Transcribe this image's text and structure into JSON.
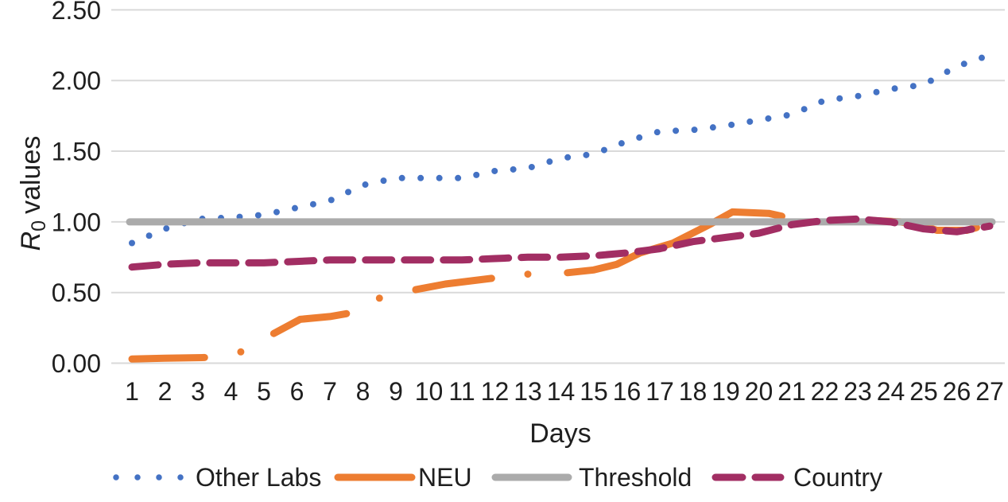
{
  "chart_data": {
    "type": "line",
    "title": "",
    "xlabel": "Days",
    "ylabel": "R0 values",
    "ylabel_parts": {
      "main": "R",
      "subscript": "0",
      "rest": "values"
    },
    "x": [
      1,
      2,
      3,
      4,
      5,
      6,
      7,
      8,
      9,
      10,
      11,
      12,
      13,
      14,
      15,
      16,
      17,
      18,
      19,
      20,
      21,
      22,
      23,
      24,
      25,
      26,
      27
    ],
    "x_ticks": [
      "1",
      "2",
      "3",
      "4",
      "5",
      "6",
      "7",
      "8",
      "9",
      "10",
      "11",
      "12",
      "13",
      "14",
      "15",
      "16",
      "17",
      "18",
      "19",
      "20",
      "21",
      "22",
      "23",
      "24",
      "25",
      "26",
      "27"
    ],
    "y_ticks": [
      "0.00",
      "0.50",
      "1.00",
      "1.50",
      "2.00",
      "2.50"
    ],
    "xlim": [
      1,
      27
    ],
    "ylim": [
      0,
      2.5
    ],
    "y_step": 0.5,
    "grid": true,
    "legend_position": "bottom",
    "series": [
      {
        "name": "Other Labs",
        "style": "dotted",
        "color": "#4472C4",
        "values": [
          0.85,
          0.95,
          1.02,
          1.03,
          1.05,
          1.1,
          1.15,
          1.26,
          1.31,
          1.31,
          1.31,
          1.36,
          1.38,
          1.45,
          1.48,
          1.57,
          1.64,
          1.65,
          1.68,
          1.72,
          1.76,
          1.86,
          1.89,
          1.94,
          1.97,
          2.1,
          2.18
        ]
      },
      {
        "name": "NEU",
        "style": "solid",
        "color": "#ED7D31",
        "segments": [
          [
            [
              1,
              0.03
            ],
            [
              2,
              0.035
            ],
            [
              3.2,
              0.04
            ]
          ],
          [
            [
              5.3,
              0.21
            ],
            [
              6.1,
              0.31
            ],
            [
              7.0,
              0.33
            ],
            [
              7.5,
              0.35
            ]
          ],
          [
            [
              9.6,
              0.52
            ],
            [
              10.5,
              0.56
            ],
            [
              11.9,
              0.6
            ]
          ],
          [
            [
              14.2,
              0.64
            ],
            [
              15.0,
              0.66
            ],
            [
              15.7,
              0.7
            ],
            [
              16.4,
              0.78
            ],
            [
              17.4,
              0.85
            ],
            [
              18.5,
              0.98
            ],
            [
              19.2,
              1.07
            ],
            [
              20.3,
              1.06
            ],
            [
              20.7,
              1.04
            ]
          ],
          [
            [
              23.4,
              1.01
            ],
            [
              24.3,
              1.0
            ],
            [
              25.0,
              0.97
            ],
            [
              25.4,
              0.94
            ],
            [
              26.3,
              0.94
            ],
            [
              26.6,
              0.96
            ]
          ]
        ],
        "isolated_points": [
          [
            4.3,
            0.08
          ],
          [
            8.5,
            0.46
          ],
          [
            13.0,
            0.63
          ]
        ]
      },
      {
        "name": "Threshold",
        "style": "solid",
        "color": "#ABABAB",
        "value": 1.0
      },
      {
        "name": "Country",
        "style": "dashed",
        "color": "#A22E63",
        "values": [
          0.68,
          0.7,
          0.71,
          0.71,
          0.71,
          0.72,
          0.73,
          0.73,
          0.73,
          0.73,
          0.73,
          0.74,
          0.75,
          0.75,
          0.76,
          0.78,
          0.81,
          0.86,
          0.89,
          0.92,
          0.98,
          1.01,
          1.02,
          1.0,
          0.95,
          0.93,
          0.97
        ]
      }
    ]
  },
  "colors": {
    "grid": "#D9D9D9",
    "text": "#1F1F1F",
    "background": "#FFFFFF",
    "other_labs": "#4472C4",
    "neu": "#ED7D31",
    "threshold": "#ABABAB",
    "country": "#A22E63"
  }
}
